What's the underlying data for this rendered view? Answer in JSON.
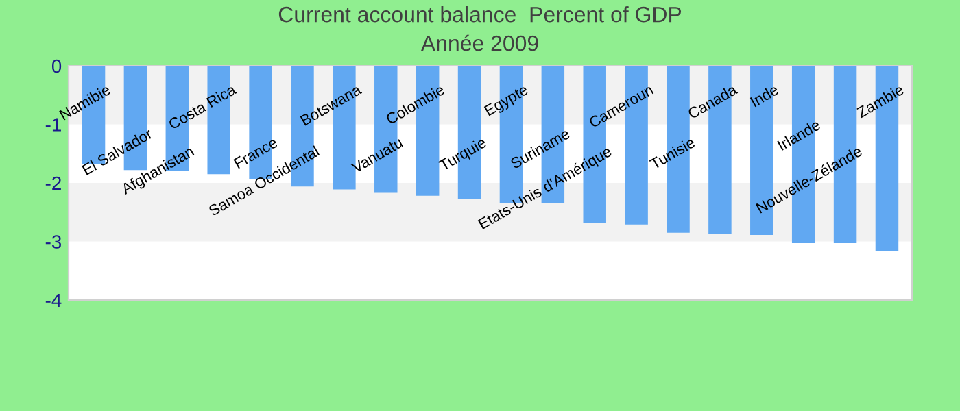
{
  "chart_data": {
    "type": "bar",
    "title": "Current account balance  Percent of GDP",
    "subtitle": "Année 2009",
    "categories": [
      "Namibie",
      "El Salvador",
      "Afghanistan",
      "Costa Rica",
      "France",
      "Samoa Occidental",
      "Botswana",
      "Vanuatu",
      "Colombie",
      "Turquie",
      "Egypte",
      "Suriname",
      "Etats-Unis d'Amérique",
      "Cameroun",
      "Tunisie",
      "Canada",
      "Inde",
      "Irlande",
      "Nouvelle-Zélande",
      "Zambie"
    ],
    "values": [
      -1.68,
      -1.78,
      -1.8,
      -1.85,
      -1.94,
      -2.06,
      -2.11,
      -2.17,
      -2.22,
      -2.28,
      -2.35,
      -2.35,
      -2.68,
      -2.71,
      -2.85,
      -2.87,
      -2.89,
      -3.03,
      -3.03,
      -3.17
    ],
    "color": "#61a8f2",
    "ylim": [
      -4,
      0
    ],
    "yticks": [
      0,
      -1,
      -2,
      -3,
      -4
    ],
    "bands": [
      {
        "axis": "y",
        "from": -1,
        "to": 0,
        "color": "#f2f2f2"
      },
      {
        "axis": "y",
        "from": -3,
        "to": -2,
        "color": "#f2f2f2"
      }
    ]
  }
}
